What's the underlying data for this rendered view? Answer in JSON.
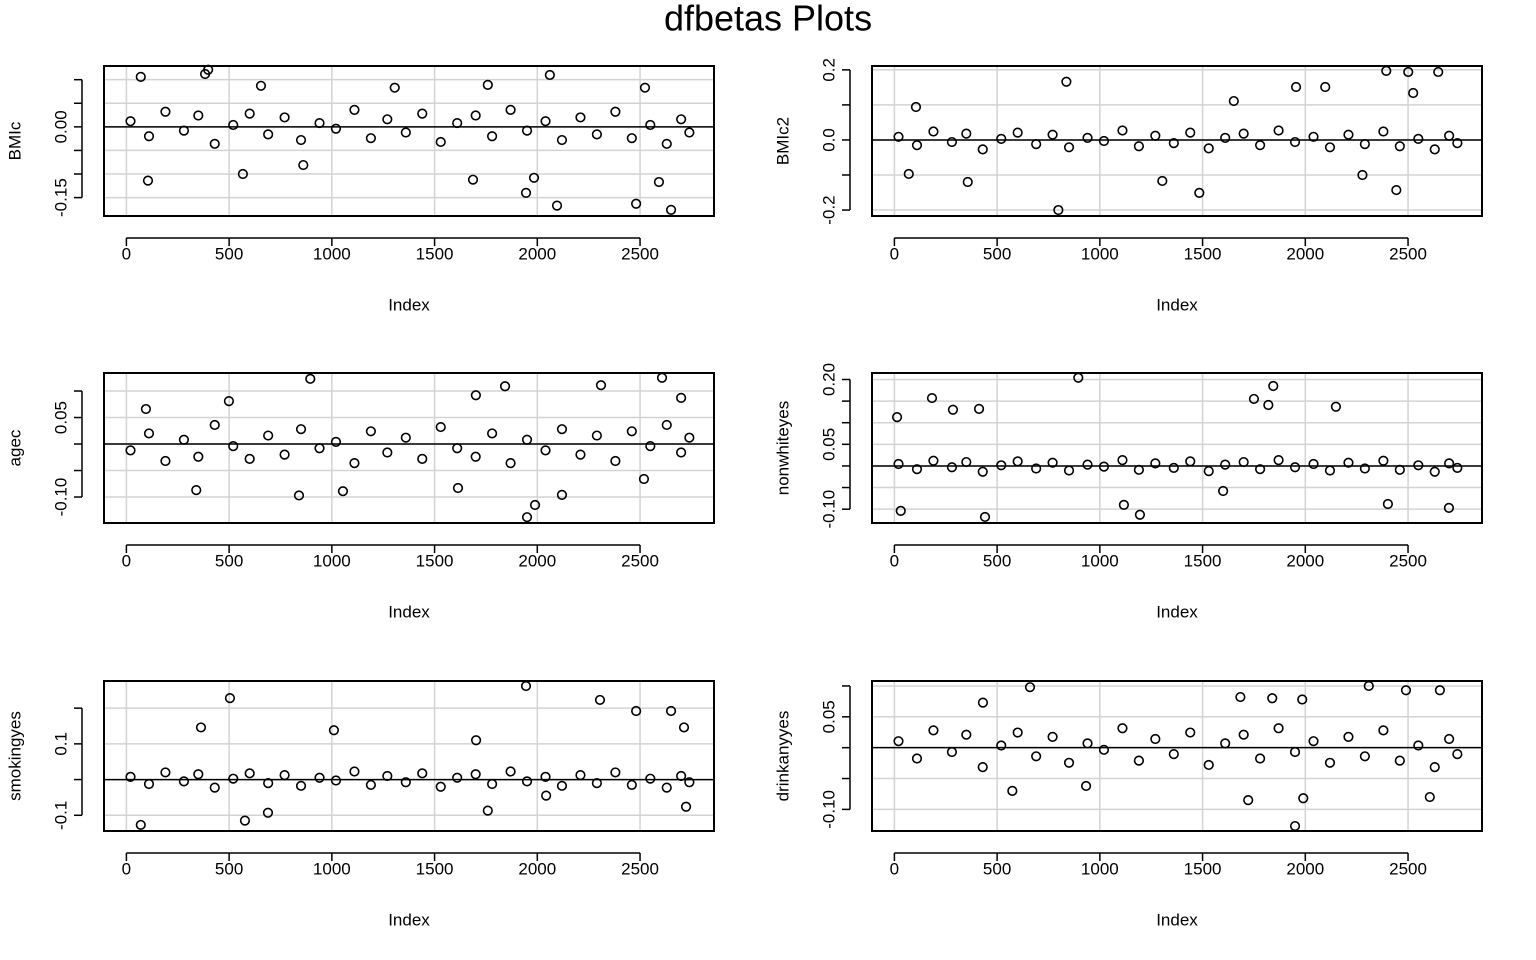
{
  "title": "dfbetas Plots",
  "chart_data": [
    {
      "type": "scatter",
      "ylabel": "BMIc",
      "xlabel": "Index",
      "hline": 0,
      "xlim": [
        -109,
        2860
      ],
      "xticks": [
        0,
        500,
        1000,
        1500,
        2000,
        2500
      ],
      "ylim": [
        -0.189,
        0.129
      ],
      "yticks": [
        -0.15,
        {
          "value": -0.1,
          "label": "-0.10"
        },
        -0.05,
        {
          "value": 0,
          "label": "0.00"
        },
        0.05,
        {
          "value": 0.1,
          "label": "0.10"
        }
      ],
      "grid": true,
      "color": "#000000",
      "x": [
        20,
        110,
        190,
        280,
        350,
        430,
        520,
        600,
        690,
        770,
        850,
        940,
        1020,
        1110,
        1190,
        1270,
        1360,
        1440,
        1530,
        1610,
        1700,
        1780,
        1870,
        1950,
        2040,
        2120,
        2210,
        2290,
        2380,
        2460,
        2550,
        2630,
        2700,
        2740,
        70,
        383,
        398,
        655,
        1306,
        1759,
        2061,
        2524,
        105,
        567,
        861,
        1687,
        1945,
        2096,
        2481,
        2651,
        2592,
        1984
      ],
      "y": [
        0.012,
        -0.02,
        0.032,
        -0.008,
        0.024,
        -0.036,
        0.004,
        0.028,
        -0.016,
        0.02,
        -0.028,
        0.008,
        -0.004,
        0.036,
        -0.024,
        0.016,
        -0.012,
        0.028,
        -0.032,
        0.008,
        0.024,
        -0.02,
        0.036,
        -0.008,
        0.012,
        -0.028,
        0.02,
        -0.016,
        0.032,
        -0.024,
        0.004,
        -0.036,
        0.016,
        -0.012,
        0.106,
        0.112,
        0.121,
        0.087,
        0.083,
        0.089,
        0.11,
        0.083,
        -0.114,
        -0.1,
        -0.081,
        -0.112,
        -0.14,
        -0.167,
        -0.163,
        -0.176,
        -0.117,
        -0.108
      ]
    },
    {
      "type": "scatter",
      "ylabel": "BMIc2",
      "xlabel": "Index",
      "hline": 0,
      "xlim": [
        -109,
        2860
      ],
      "xticks": [
        0,
        500,
        1000,
        1500,
        2000,
        2500
      ],
      "ylim": [
        -0.217,
        0.211
      ],
      "yticks": [
        -0.2,
        -0.1,
        {
          "value": 0,
          "label": "0.0"
        },
        0.1,
        0.2
      ],
      "grid": true,
      "color": "#000000",
      "x": [
        20,
        110,
        190,
        280,
        350,
        430,
        520,
        600,
        690,
        770,
        850,
        940,
        1020,
        1110,
        1190,
        1270,
        1360,
        1440,
        1530,
        1610,
        1700,
        1780,
        1870,
        1950,
        2040,
        2120,
        2210,
        2290,
        2380,
        2460,
        2550,
        2630,
        2700,
        2740,
        105,
        837,
        2394,
        2501,
        2647,
        2525,
        1955,
        2097,
        1652,
        70,
        357,
        798,
        1304,
        1484,
        2443,
        2278
      ],
      "y": [
        0.009,
        -0.015,
        0.024,
        -0.006,
        0.018,
        -0.027,
        0.003,
        0.021,
        -0.012,
        0.015,
        -0.021,
        0.006,
        -0.003,
        0.027,
        -0.018,
        0.012,
        -0.009,
        0.021,
        -0.024,
        0.006,
        0.018,
        -0.015,
        0.027,
        -0.006,
        0.009,
        -0.021,
        0.015,
        -0.012,
        0.024,
        -0.018,
        0.003,
        -0.027,
        0.012,
        -0.009,
        0.094,
        0.166,
        0.197,
        0.194,
        0.194,
        0.134,
        0.151,
        0.151,
        0.111,
        -0.097,
        -0.12,
        -0.2,
        -0.117,
        -0.151,
        -0.143,
        -0.1
      ]
    },
    {
      "type": "scatter",
      "ylabel": "agec",
      "xlabel": "Index",
      "hline": 0,
      "xlim": [
        -109,
        2860
      ],
      "xticks": [
        0,
        500,
        1000,
        1500,
        2000,
        2500
      ],
      "ylim": [
        -0.149,
        0.134
      ],
      "yticks": [
        {
          "value": -0.1,
          "label": "-0.10"
        },
        -0.05,
        {
          "value": 0,
          "label": "0.00"
        },
        0.05,
        {
          "value": 0.1,
          "label": "0.10"
        }
      ],
      "grid": true,
      "color": "#000000",
      "x": [
        20,
        110,
        190,
        280,
        350,
        430,
        520,
        600,
        690,
        770,
        850,
        940,
        1020,
        1110,
        1190,
        1270,
        1360,
        1440,
        1530,
        1610,
        1700,
        1780,
        1870,
        1950,
        2040,
        2120,
        2210,
        2290,
        2380,
        2460,
        2550,
        2630,
        2700,
        2740,
        895,
        1843,
        2310,
        2607,
        2700,
        1701,
        499,
        95,
        1950,
        1989,
        840,
        340,
        1054,
        2120,
        2519,
        1614
      ],
      "y": [
        -0.012,
        0.02,
        -0.032,
        0.008,
        -0.024,
        0.036,
        -0.004,
        -0.028,
        0.016,
        -0.02,
        0.028,
        -0.008,
        0.004,
        -0.036,
        0.024,
        -0.016,
        0.012,
        -0.028,
        0.032,
        -0.008,
        -0.024,
        0.02,
        -0.036,
        0.008,
        -0.012,
        0.028,
        -0.02,
        0.016,
        -0.032,
        0.024,
        -0.004,
        0.036,
        -0.016,
        0.012,
        0.123,
        0.109,
        0.111,
        0.125,
        0.087,
        0.092,
        0.081,
        0.066,
        -0.138,
        -0.115,
        -0.097,
        -0.087,
        -0.089,
        -0.096,
        -0.066,
        -0.083
      ]
    },
    {
      "type": "scatter",
      "ylabel": "nonwhiteyes",
      "xlabel": "Index",
      "hline": 0,
      "xlim": [
        -109,
        2860
      ],
      "xticks": [
        0,
        500,
        1000,
        1500,
        2000,
        2500
      ],
      "ylim": [
        -0.132,
        0.215
      ],
      "yticks": [
        {
          "value": -0.1,
          "label": "-0.10"
        },
        -0.05,
        {
          "value": 0,
          "label": "0.00"
        },
        0.05,
        {
          "value": 0.1,
          "label": "0.10"
        },
        0.15,
        {
          "value": 0.2,
          "label": "0.20"
        }
      ],
      "grid": true,
      "color": "#000000",
      "x": [
        20,
        110,
        190,
        280,
        350,
        430,
        520,
        600,
        690,
        770,
        850,
        940,
        1020,
        1110,
        1190,
        1270,
        1360,
        1440,
        1530,
        1610,
        1700,
        1780,
        1870,
        1950,
        2040,
        2120,
        2210,
        2290,
        2380,
        2460,
        2550,
        2630,
        2700,
        2740,
        13,
        183,
        895,
        1844,
        1820,
        1750,
        2149,
        285,
        412,
        31,
        441,
        1195,
        2402,
        2699,
        1117,
        1600
      ],
      "y": [
        0.0045,
        -0.0075,
        0.012,
        -0.003,
        0.009,
        -0.0135,
        0.0015,
        0.0105,
        -0.006,
        0.0075,
        -0.0105,
        0.003,
        -0.0015,
        0.0135,
        -0.009,
        0.006,
        -0.0045,
        0.0105,
        -0.012,
        0.003,
        0.009,
        -0.0075,
        0.0135,
        -0.003,
        0.0045,
        -0.0105,
        0.0075,
        -0.006,
        0.012,
        -0.009,
        0.0015,
        -0.0135,
        0.006,
        -0.0045,
        0.113,
        0.157,
        0.204,
        0.185,
        0.141,
        0.155,
        0.137,
        0.13,
        0.132,
        -0.104,
        -0.118,
        -0.113,
        -0.088,
        -0.097,
        -0.09,
        -0.058
      ]
    },
    {
      "type": "scatter",
      "ylabel": "smokingyes",
      "xlabel": "Index",
      "hline": 0,
      "xlim": [
        -109,
        2860
      ],
      "xticks": [
        0,
        500,
        1000,
        1500,
        2000,
        2500
      ],
      "ylim": [
        -0.144,
        0.276
      ],
      "yticks": [
        -0.1,
        {
          "value": 0,
          "label": "0.0"
        },
        0.1,
        0.2
      ],
      "grid": true,
      "color": "#000000",
      "x": [
        20,
        110,
        190,
        280,
        350,
        430,
        520,
        600,
        690,
        770,
        850,
        940,
        1020,
        1110,
        1190,
        1270,
        1360,
        1440,
        1530,
        1610,
        1700,
        1780,
        1870,
        1950,
        2040,
        2120,
        2210,
        2290,
        2380,
        2460,
        2550,
        2630,
        2700,
        2740,
        1945,
        2305,
        2481,
        2651,
        504,
        363,
        1010,
        2714,
        1702,
        70,
        577,
        1759,
        2724,
        2043,
        689
      ],
      "y": [
        0.0075,
        -0.0125,
        0.02,
        -0.005,
        0.015,
        -0.0225,
        0.0025,
        0.0175,
        -0.01,
        0.0125,
        -0.0175,
        0.005,
        -0.0025,
        0.0225,
        -0.015,
        0.01,
        -0.0075,
        0.0175,
        -0.02,
        0.005,
        0.015,
        -0.0125,
        0.0225,
        -0.005,
        0.0075,
        -0.0175,
        0.0125,
        -0.01,
        0.02,
        -0.015,
        0.0025,
        -0.0225,
        0.01,
        -0.0075,
        0.262,
        0.223,
        0.192,
        0.192,
        0.228,
        0.146,
        0.138,
        0.146,
        0.11,
        -0.127,
        -0.115,
        -0.087,
        -0.076,
        -0.045,
        -0.093
      ]
    },
    {
      "type": "scatter",
      "ylabel": "drinkanyyes",
      "xlabel": "Index",
      "hline": 0,
      "xlim": [
        -109,
        2860
      ],
      "xticks": [
        0,
        500,
        1000,
        1500,
        2000,
        2500
      ],
      "ylim": [
        -0.135,
        0.108
      ],
      "yticks": [
        {
          "value": -0.1,
          "label": "-0.10"
        },
        -0.05,
        {
          "value": 0,
          "label": "0.00"
        },
        0.05,
        {
          "value": 0.1,
          "label": "0.10"
        }
      ],
      "grid": true,
      "color": "#000000",
      "x": [
        20,
        110,
        190,
        280,
        350,
        430,
        520,
        600,
        690,
        770,
        850,
        940,
        1020,
        1110,
        1190,
        1270,
        1360,
        1440,
        1530,
        1610,
        1700,
        1780,
        1870,
        1950,
        2040,
        2120,
        2210,
        2290,
        2380,
        2460,
        2550,
        2630,
        2700,
        2740,
        660,
        2309,
        2655,
        2490,
        1839,
        1985,
        431,
        1684,
        574,
        1722,
        1990,
        1950,
        2606,
        933
      ],
      "y": [
        0.0105,
        -0.0175,
        0.028,
        -0.007,
        0.021,
        -0.0315,
        0.0035,
        0.0245,
        -0.014,
        0.0175,
        -0.0245,
        0.007,
        -0.0035,
        0.0315,
        -0.021,
        0.014,
        -0.0105,
        0.0245,
        -0.028,
        0.007,
        0.021,
        -0.0175,
        0.0315,
        -0.007,
        0.0105,
        -0.0245,
        0.0175,
        -0.014,
        0.028,
        -0.021,
        0.0035,
        -0.0315,
        0.014,
        -0.0105,
        0.098,
        0.1,
        0.093,
        0.093,
        0.08,
        0.078,
        0.073,
        0.082,
        -0.07,
        -0.085,
        -0.082,
        -0.127,
        -0.08,
        -0.062
      ]
    }
  ]
}
